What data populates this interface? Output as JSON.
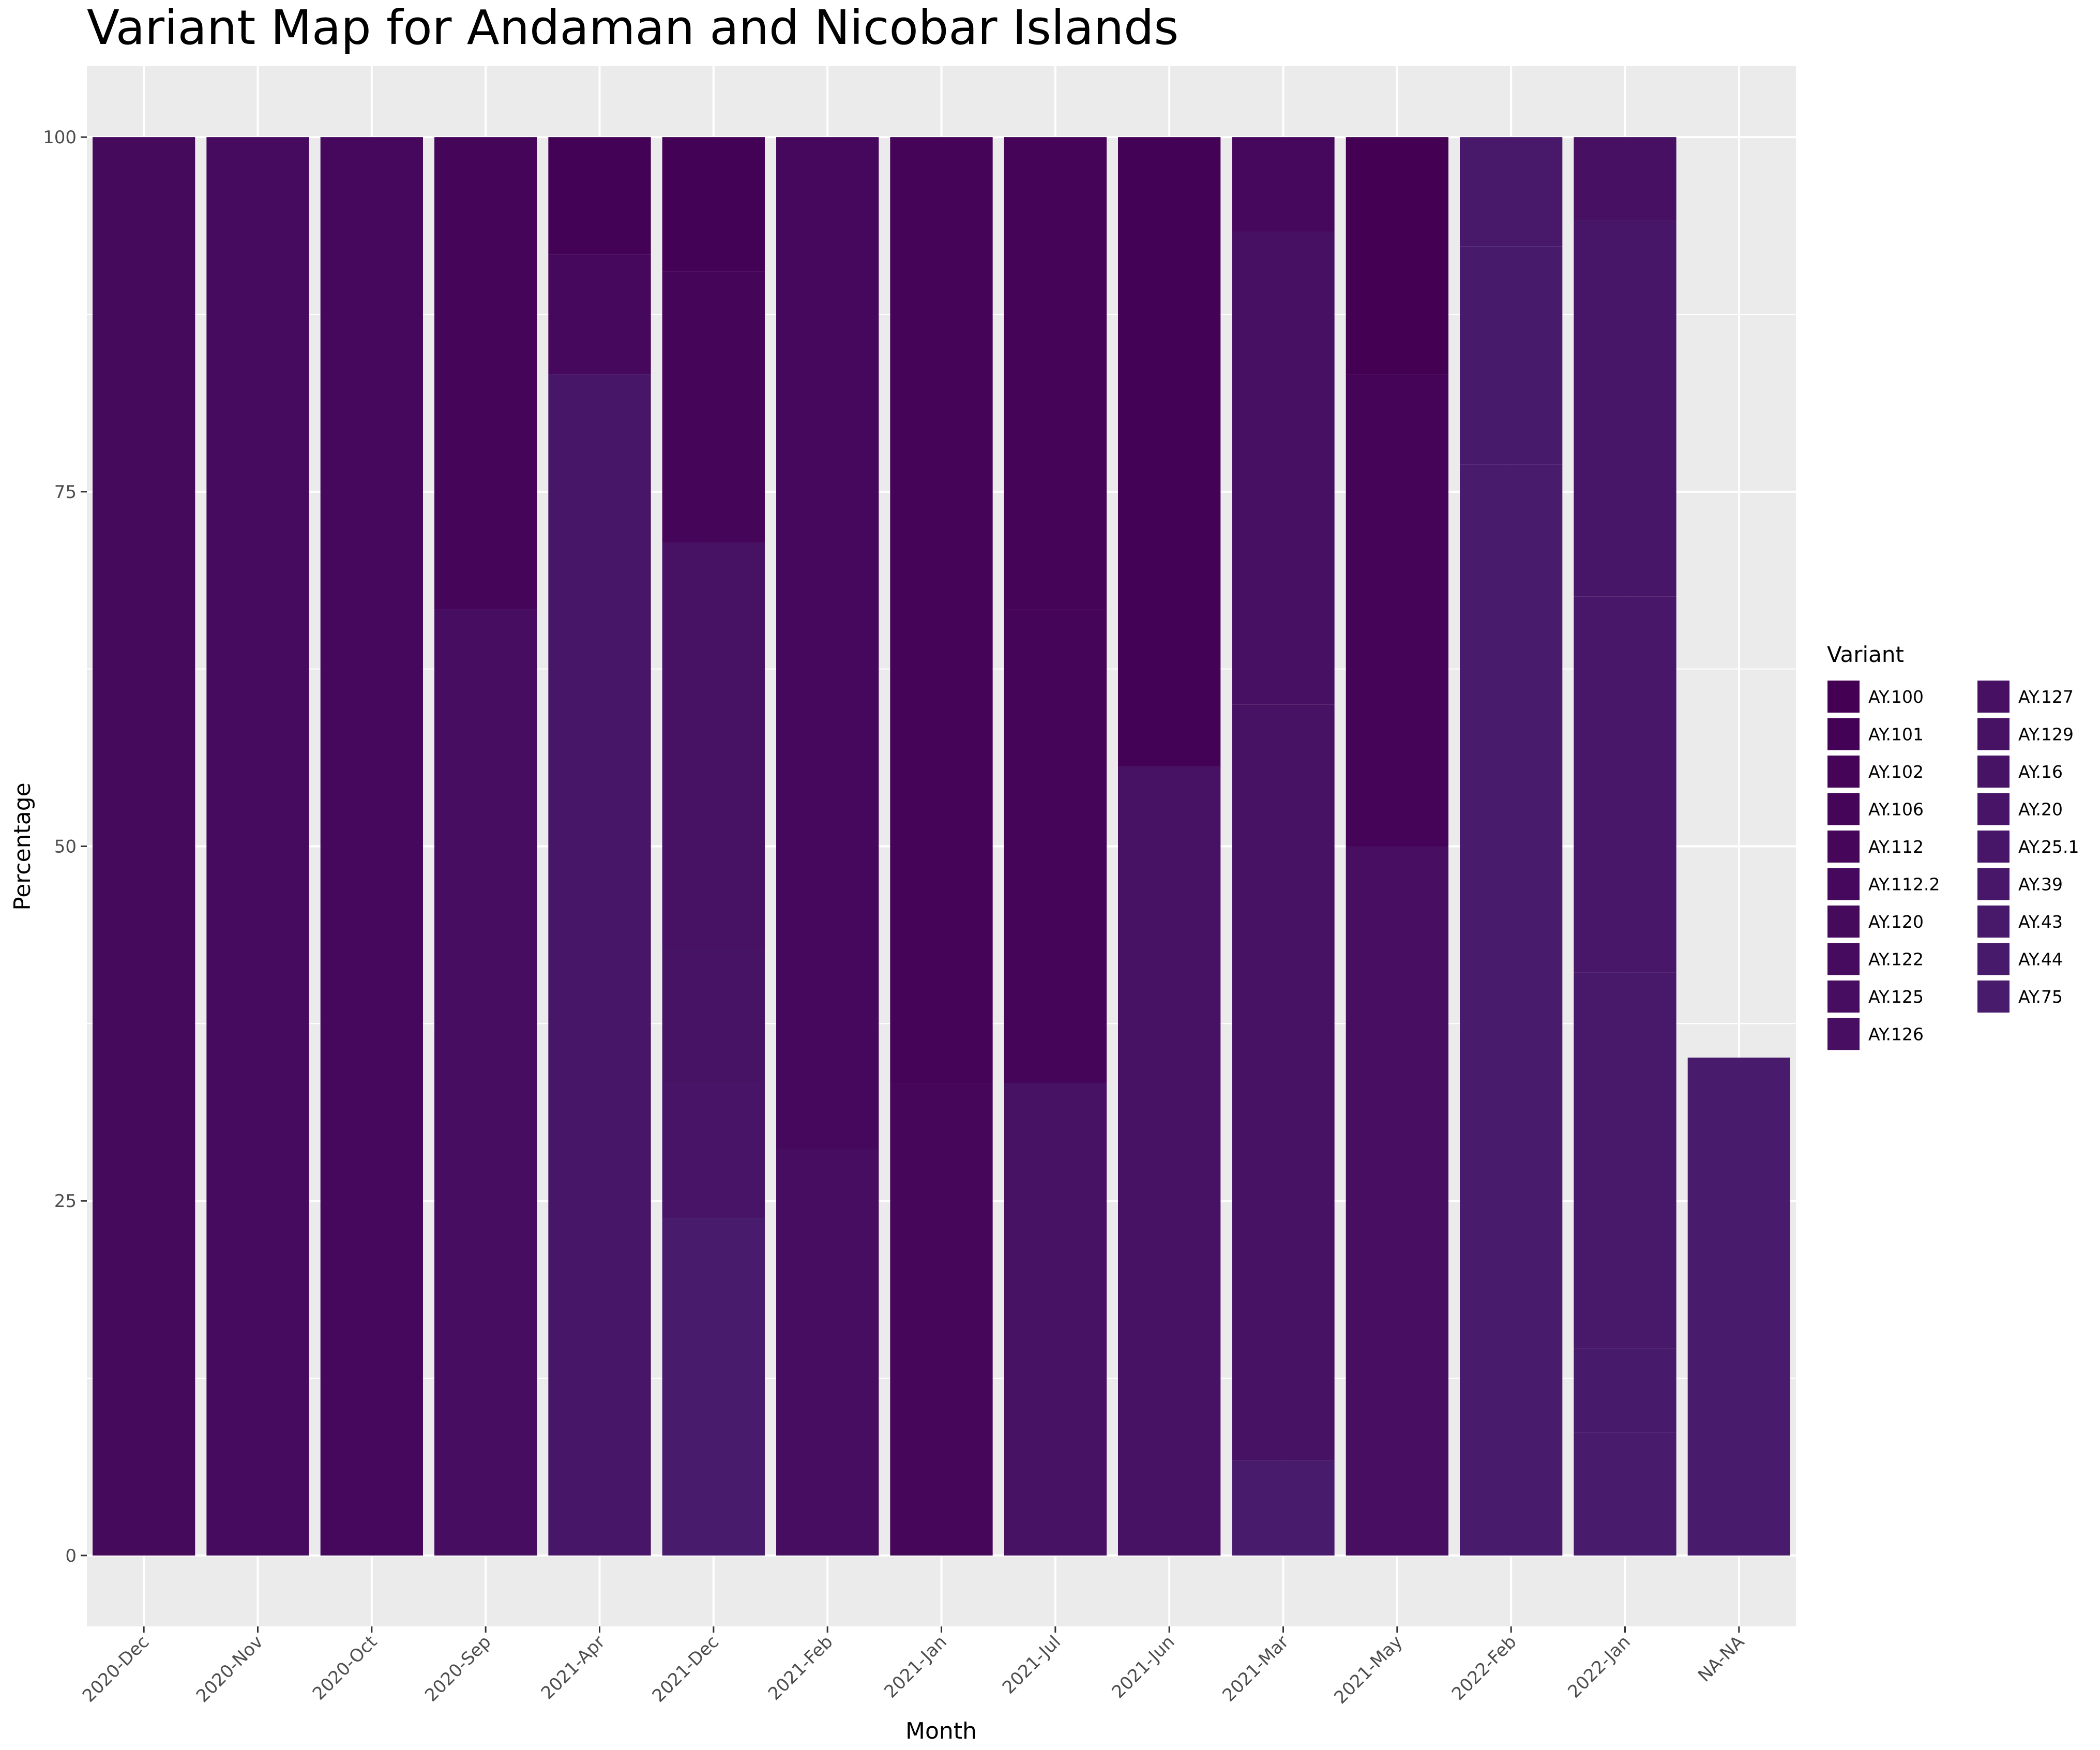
{
  "chart_data": {
    "type": "stacked-bar",
    "title": "Variant Map for Andaman and Nicobar Islands",
    "xlabel": "Month",
    "ylabel": "Percentage",
    "ylim": [
      -5,
      105
    ],
    "yticks": [
      0,
      25,
      50,
      75,
      100
    ],
    "legend_title": "Variant",
    "legend_position": "right",
    "variants": [
      "AY.100",
      "AY.101",
      "AY.102",
      "AY.106",
      "AY.112",
      "AY.112.2",
      "AY.120",
      "AY.122",
      "AY.125",
      "AY.126",
      "AY.127",
      "AY.129",
      "AY.16",
      "AY.20",
      "AY.25.1",
      "AY.39",
      "AY.43",
      "AY.44",
      "AY.75"
    ],
    "colors": {
      "AY.100": "#440154",
      "AY.101": "#440256",
      "AY.102": "#450457",
      "AY.106": "#450559",
      "AY.112": "#46075A",
      "AY.112.2": "#46085C",
      "AY.120": "#460A5D",
      "AY.122": "#460B5E",
      "AY.125": "#470D60",
      "AY.126": "#470E61",
      "AY.127": "#471063",
      "AY.129": "#471164",
      "AY.16": "#471365",
      "AY.20": "#481467",
      "AY.25.1": "#481668",
      "AY.39": "#481769",
      "AY.43": "#48186A",
      "AY.44": "#481A6C",
      "AY.75": "#481B6D"
    },
    "categories": [
      "2020-Dec",
      "2020-Nov",
      "2020-Oct",
      "2020-Sep",
      "2021-Apr",
      "2021-Dec",
      "2021-Feb",
      "2021-Jan",
      "2021-Jul",
      "2021-Jun",
      "2021-Mar",
      "2021-May",
      "2022-Feb",
      "2022-Jan",
      "NA-NA"
    ],
    "bars": [
      {
        "month": "2020-Dec",
        "segments": [
          {
            "variant": "AY.120",
            "value": 100
          }
        ]
      },
      {
        "month": "2020-Nov",
        "segments": [
          {
            "variant": "AY.122",
            "value": 100
          }
        ]
      },
      {
        "month": "2020-Oct",
        "segments": [
          {
            "variant": "AY.112.2",
            "value": 100
          }
        ]
      },
      {
        "month": "2020-Sep",
        "segments": [
          {
            "variant": "AY.106",
            "value": 33.3
          },
          {
            "variant": "AY.125",
            "value": 66.7
          }
        ]
      },
      {
        "month": "2021-Apr",
        "segments": [
          {
            "variant": "AY.101",
            "value": 8.3
          },
          {
            "variant": "AY.112.2",
            "value": 8.4
          },
          {
            "variant": "AY.25.1",
            "value": 83.3
          }
        ]
      },
      {
        "month": "2021-Dec",
        "segments": [
          {
            "variant": "AY.101",
            "value": 9.5
          },
          {
            "variant": "AY.106",
            "value": 19.1
          },
          {
            "variant": "AY.129",
            "value": 28.6
          },
          {
            "variant": "AY.16",
            "value": 9.5
          },
          {
            "variant": "AY.20",
            "value": 9.5
          },
          {
            "variant": "AY.75",
            "value": 23.8
          }
        ]
      },
      {
        "month": "2021-Feb",
        "segments": [
          {
            "variant": "AY.112.2",
            "value": 71.4
          },
          {
            "variant": "AY.125",
            "value": 28.6
          }
        ]
      },
      {
        "month": "2021-Jan",
        "segments": [
          {
            "variant": "AY.102",
            "value": 66.7
          },
          {
            "variant": "AY.112",
            "value": 33.3
          }
        ]
      },
      {
        "month": "2021-Jul",
        "segments": [
          {
            "variant": "AY.102",
            "value": 33.3
          },
          {
            "variant": "AY.106",
            "value": 33.4
          },
          {
            "variant": "AY.129",
            "value": 33.3
          }
        ]
      },
      {
        "month": "2021-Jun",
        "segments": [
          {
            "variant": "AY.101",
            "value": 44.4
          },
          {
            "variant": "AY.129",
            "value": 55.6
          }
        ]
      },
      {
        "month": "2021-Mar",
        "segments": [
          {
            "variant": "AY.112.2",
            "value": 6.7
          },
          {
            "variant": "AY.127",
            "value": 33.3
          },
          {
            "variant": "AY.129",
            "value": 53.3
          },
          {
            "variant": "AY.75",
            "value": 6.7
          }
        ]
      },
      {
        "month": "2021-May",
        "segments": [
          {
            "variant": "AY.100",
            "value": 16.7
          },
          {
            "variant": "AY.102",
            "value": 33.3
          },
          {
            "variant": "AY.126",
            "value": 50
          }
        ]
      },
      {
        "month": "2022-Feb",
        "segments": [
          {
            "variant": "AY.43",
            "value": 7.7
          },
          {
            "variant": "AY.44",
            "value": 15.4
          },
          {
            "variant": "AY.75",
            "value": 76.9
          }
        ]
      },
      {
        "month": "2022-Jan",
        "segments": [
          {
            "variant": "AY.127",
            "value": 5.9
          },
          {
            "variant": "AY.25.1",
            "value": 26.5
          },
          {
            "variant": "AY.39",
            "value": 26.5
          },
          {
            "variant": "AY.43",
            "value": 26.5
          },
          {
            "variant": "AY.44",
            "value": 5.9
          },
          {
            "variant": "AY.75",
            "value": 8.7
          }
        ]
      },
      {
        "month": "NA-NA",
        "segments": [
          {
            "variant": "AY.75",
            "value": 35.1
          }
        ]
      }
    ]
  }
}
